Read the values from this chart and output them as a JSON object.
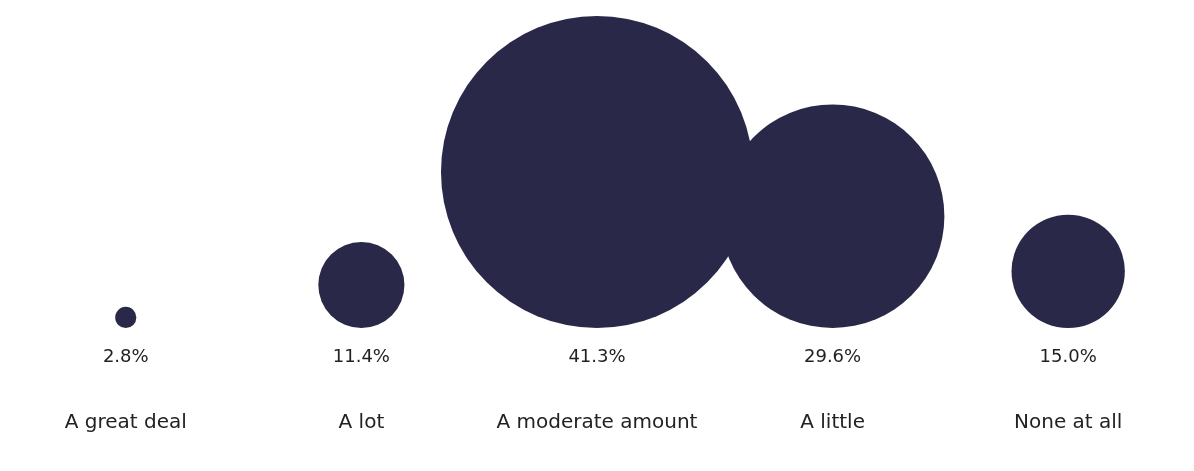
{
  "chart_data": {
    "type": "other",
    "categories": [
      "A great deal",
      "A lot",
      "A moderate amount",
      "A little",
      "None at all"
    ],
    "values": [
      2.8,
      11.4,
      41.3,
      29.6,
      15.0
    ],
    "value_labels": [
      "2.8%",
      "11.4%",
      "41.3%",
      "29.6%",
      "15.0%"
    ],
    "color": "#2a2849"
  }
}
